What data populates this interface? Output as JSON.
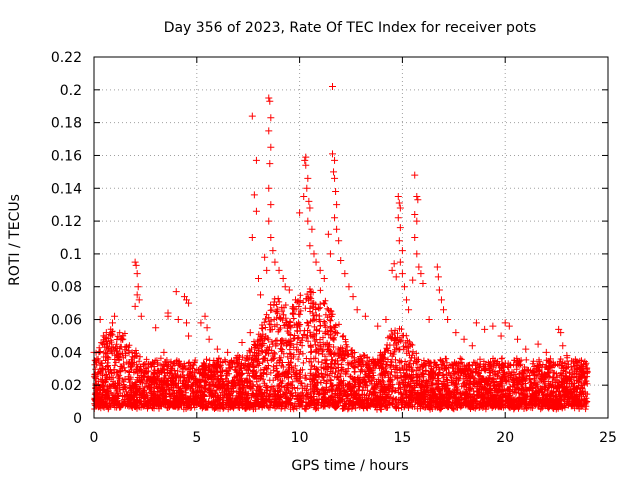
{
  "chart_data": {
    "type": "scatter",
    "title": "Day 356 of 2023, Rate Of TEC Index for receiver pots",
    "xlabel": "GPS time / hours",
    "ylabel": "ROTI / TECUs",
    "xlim": [
      0,
      25
    ],
    "ylim": [
      0,
      0.22
    ],
    "xticks": [
      "0",
      "5",
      "10",
      "15",
      "20",
      "25"
    ],
    "yticks": [
      "0",
      "0.02",
      "0.04",
      "0.06",
      "0.08",
      "0.1",
      "0.12",
      "0.14",
      "0.16",
      "0.18",
      "0.2",
      "0.22"
    ],
    "grid": true,
    "marker": "+",
    "series": [
      {
        "color": "#ff0000",
        "points": [
          [
            0.0,
            0.04
          ],
          [
            0.3,
            0.06
          ],
          [
            0.6,
            0.052
          ],
          [
            0.9,
            0.058
          ],
          [
            1.0,
            0.062
          ],
          [
            1.4,
            0.048
          ],
          [
            2.0,
            0.095
          ],
          [
            2.05,
            0.093
          ],
          [
            2.1,
            0.088
          ],
          [
            2.15,
            0.08
          ],
          [
            2.1,
            0.075
          ],
          [
            2.2,
            0.072
          ],
          [
            2.0,
            0.068
          ],
          [
            2.3,
            0.062
          ],
          [
            3.0,
            0.055
          ],
          [
            3.4,
            0.04
          ],
          [
            3.6,
            0.064
          ],
          [
            3.6,
            0.062
          ],
          [
            4.0,
            0.077
          ],
          [
            4.1,
            0.06
          ],
          [
            4.4,
            0.074
          ],
          [
            4.5,
            0.072
          ],
          [
            4.6,
            0.07
          ],
          [
            4.5,
            0.058
          ],
          [
            4.6,
            0.05
          ],
          [
            5.2,
            0.058
          ],
          [
            5.4,
            0.062
          ],
          [
            5.5,
            0.055
          ],
          [
            5.6,
            0.048
          ],
          [
            6.0,
            0.042
          ],
          [
            6.5,
            0.04
          ],
          [
            7.0,
            0.038
          ],
          [
            7.2,
            0.046
          ],
          [
            7.6,
            0.052
          ],
          [
            7.7,
            0.184
          ],
          [
            7.9,
            0.157
          ],
          [
            7.8,
            0.136
          ],
          [
            7.9,
            0.126
          ],
          [
            7.7,
            0.11
          ],
          [
            8.0,
            0.085
          ],
          [
            8.1,
            0.075
          ],
          [
            8.3,
            0.098
          ],
          [
            8.4,
            0.09
          ],
          [
            8.5,
            0.195
          ],
          [
            8.55,
            0.193
          ],
          [
            8.6,
            0.183
          ],
          [
            8.5,
            0.175
          ],
          [
            8.6,
            0.165
          ],
          [
            8.55,
            0.155
          ],
          [
            8.5,
            0.14
          ],
          [
            8.6,
            0.13
          ],
          [
            8.5,
            0.12
          ],
          [
            8.6,
            0.11
          ],
          [
            8.7,
            0.102
          ],
          [
            8.8,
            0.095
          ],
          [
            9.0,
            0.09
          ],
          [
            9.2,
            0.085
          ],
          [
            9.3,
            0.08
          ],
          [
            9.5,
            0.078
          ],
          [
            9.8,
            0.072
          ],
          [
            10.0,
            0.125
          ],
          [
            10.2,
            0.135
          ],
          [
            10.25,
            0.157
          ],
          [
            10.3,
            0.159
          ],
          [
            10.3,
            0.154
          ],
          [
            10.4,
            0.146
          ],
          [
            10.35,
            0.14
          ],
          [
            10.45,
            0.132
          ],
          [
            10.5,
            0.128
          ],
          [
            10.4,
            0.12
          ],
          [
            10.6,
            0.115
          ],
          [
            10.5,
            0.105
          ],
          [
            10.7,
            0.1
          ],
          [
            10.8,
            0.095
          ],
          [
            11.0,
            0.09
          ],
          [
            11.2,
            0.085
          ],
          [
            11.4,
            0.112
          ],
          [
            11.5,
            0.1
          ],
          [
            11.6,
            0.202
          ],
          [
            11.6,
            0.161
          ],
          [
            11.7,
            0.157
          ],
          [
            11.65,
            0.15
          ],
          [
            11.7,
            0.146
          ],
          [
            11.75,
            0.138
          ],
          [
            11.8,
            0.13
          ],
          [
            11.7,
            0.122
          ],
          [
            11.8,
            0.115
          ],
          [
            11.9,
            0.108
          ],
          [
            12.0,
            0.096
          ],
          [
            12.2,
            0.088
          ],
          [
            12.4,
            0.08
          ],
          [
            12.6,
            0.074
          ],
          [
            12.8,
            0.066
          ],
          [
            13.2,
            0.062
          ],
          [
            13.8,
            0.056
          ],
          [
            14.2,
            0.06
          ],
          [
            14.5,
            0.09
          ],
          [
            14.6,
            0.094
          ],
          [
            14.7,
            0.086
          ],
          [
            14.8,
            0.135
          ],
          [
            14.85,
            0.131
          ],
          [
            14.9,
            0.128
          ],
          [
            14.8,
            0.122
          ],
          [
            14.9,
            0.116
          ],
          [
            14.85,
            0.108
          ],
          [
            15.0,
            0.102
          ],
          [
            14.9,
            0.095
          ],
          [
            15.0,
            0.088
          ],
          [
            15.1,
            0.08
          ],
          [
            15.2,
            0.072
          ],
          [
            15.3,
            0.066
          ],
          [
            15.5,
            0.084
          ],
          [
            15.6,
            0.148
          ],
          [
            15.7,
            0.135
          ],
          [
            15.75,
            0.133
          ],
          [
            15.6,
            0.124
          ],
          [
            15.7,
            0.12
          ],
          [
            15.6,
            0.11
          ],
          [
            15.7,
            0.1
          ],
          [
            15.8,
            0.092
          ],
          [
            15.9,
            0.088
          ],
          [
            16.0,
            0.082
          ],
          [
            16.3,
            0.06
          ],
          [
            16.7,
            0.092
          ],
          [
            16.75,
            0.086
          ],
          [
            16.8,
            0.078
          ],
          [
            16.9,
            0.072
          ],
          [
            17.0,
            0.066
          ],
          [
            17.2,
            0.06
          ],
          [
            17.6,
            0.052
          ],
          [
            18.0,
            0.048
          ],
          [
            18.4,
            0.044
          ],
          [
            18.6,
            0.058
          ],
          [
            19.0,
            0.054
          ],
          [
            19.4,
            0.056
          ],
          [
            19.8,
            0.05
          ],
          [
            20.0,
            0.058
          ],
          [
            20.2,
            0.056
          ],
          [
            20.6,
            0.048
          ],
          [
            21.0,
            0.042
          ],
          [
            21.6,
            0.045
          ],
          [
            22.0,
            0.04
          ],
          [
            22.2,
            0.036
          ],
          [
            22.6,
            0.054
          ],
          [
            22.7,
            0.052
          ],
          [
            22.8,
            0.044
          ],
          [
            23.0,
            0.038
          ],
          [
            23.5,
            0.032
          ],
          [
            23.8,
            0.03
          ],
          [
            24.0,
            0.028
          ]
        ]
      }
    ]
  }
}
